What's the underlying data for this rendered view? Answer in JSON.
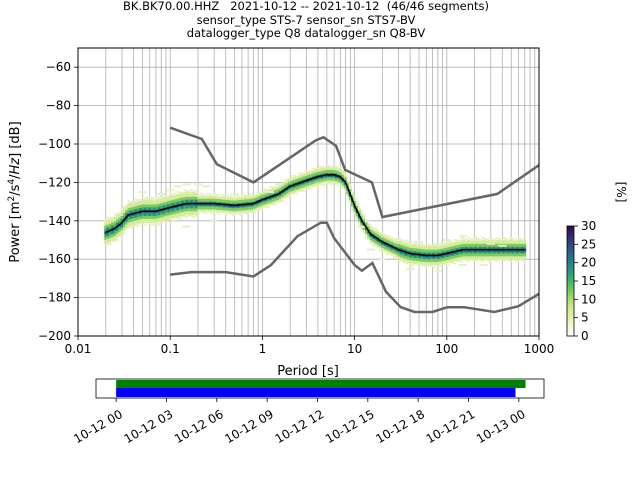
{
  "title": {
    "line1": "BK.BK70.00.HHZ   2021-10-12 -- 2021-10-12  (46/46 segments)",
    "line2": "sensor_type STS-7 sensor_sn STS7-BV",
    "line3": "datalogger_type Q8 datalogger_sn Q8-BV"
  },
  "chart_data": [
    {
      "type": "heatmap",
      "xlabel": "Period [s]",
      "ylabel": "Power [m²/s⁴/Hz] [dB]",
      "xscale": "log",
      "xlim": [
        0.01,
        1000
      ],
      "ylim": [
        -200,
        -50
      ],
      "xticks": [
        0.01,
        0.1,
        1,
        10,
        100,
        1000
      ],
      "xticklabels": [
        "0.01",
        "0.1",
        "1",
        "10",
        "100",
        "1000"
      ],
      "yticks": [
        -200,
        -180,
        -160,
        -140,
        -120,
        -100,
        -80,
        -60
      ],
      "yticklabels": [
        "−200",
        "−180",
        "−160",
        "−140",
        "−120",
        "−100",
        "−80",
        "−60"
      ],
      "grid": true,
      "colorbar": {
        "label": "[%]",
        "range": [
          0,
          30
        ],
        "ticks": [
          0,
          5,
          10,
          15,
          20,
          25,
          30
        ],
        "ticklabels": [
          "0",
          "5",
          "10",
          "15",
          "20",
          "25",
          "30"
        ]
      },
      "mean_curve": {
        "period": [
          0.02,
          0.025,
          0.03,
          0.035,
          0.05,
          0.07,
          0.1,
          0.15,
          0.2,
          0.3,
          0.5,
          0.8,
          1.0,
          1.5,
          2,
          3,
          4,
          5,
          6,
          7,
          8,
          10,
          12,
          15,
          20,
          30,
          40,
          60,
          80,
          100,
          150,
          200,
          300,
          500,
          700
        ],
        "power": [
          -146,
          -144,
          -141,
          -137,
          -135,
          -135,
          -133,
          -131,
          -131,
          -131,
          -132,
          -131,
          -129,
          -126,
          -122,
          -119,
          -117,
          -116,
          -116,
          -117,
          -120,
          -132,
          -140,
          -147,
          -151,
          -155,
          -157,
          -158,
          -158,
          -157,
          -155,
          -155,
          -155,
          -155,
          -155
        ]
      },
      "noise_model_high": {
        "period": [
          0.1,
          0.22,
          0.32,
          0.8,
          3.8,
          4.6,
          6.3,
          7.9,
          15.4,
          20,
          354,
          1000
        ],
        "power": [
          -91.5,
          -97.4,
          -110.5,
          -120,
          -98,
          -96.5,
          -101,
          -113.5,
          -120,
          -138,
          -126,
          -111
        ]
      },
      "noise_model_low": {
        "period": [
          0.1,
          0.17,
          0.4,
          0.8,
          1.24,
          2.4,
          4.3,
          5,
          6,
          10,
          12,
          15.6,
          21.9,
          31.6,
          45,
          70,
          101,
          154,
          328,
          600,
          1000
        ],
        "power": [
          -168,
          -166.7,
          -166.7,
          -169,
          -163,
          -148,
          -141,
          -141,
          -149,
          -163,
          -166,
          -162,
          -177,
          -185,
          -187.5,
          -187.5,
          -185,
          -185,
          -187.5,
          -184.5,
          -178
        ]
      }
    },
    {
      "type": "bar",
      "x_ticklabels": [
        "10-12 00",
        "10-12 03",
        "10-12 06",
        "10-12 09",
        "10-12 12",
        "10-12 15",
        "10-12 18",
        "10-12 21",
        "10-13 00"
      ],
      "series": [
        {
          "color": "#008000",
          "start_hour": 0.0,
          "end_hour": 24.4
        },
        {
          "color": "#0000ff",
          "start_hour": 0.0,
          "end_hour": 23.8
        }
      ],
      "xlim_hours": [
        -1.2,
        25.5
      ]
    }
  ],
  "colors": {
    "mean_curve": "#000000",
    "noise_models": "#666666",
    "grid": "#b0b0b0"
  }
}
